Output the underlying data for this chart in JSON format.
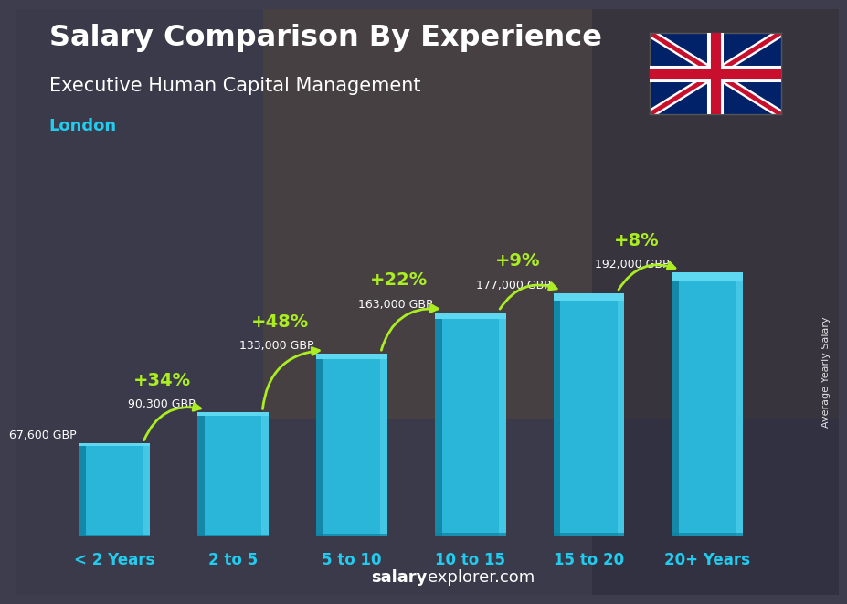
{
  "title_line1": "Salary Comparison By Experience",
  "title_line2": "Executive Human Capital Management",
  "city": "London",
  "categories": [
    "< 2 Years",
    "2 to 5",
    "5 to 10",
    "10 to 15",
    "15 to 20",
    "20+ Years"
  ],
  "values": [
    67600,
    90300,
    133000,
    163000,
    177000,
    192000
  ],
  "labels": [
    "67,600 GBP",
    "90,300 GBP",
    "133,000 GBP",
    "163,000 GBP",
    "177,000 GBP",
    "192,000 GBP"
  ],
  "pct_labels": [
    "+34%",
    "+48%",
    "+22%",
    "+9%",
    "+8%"
  ],
  "bar_color_main": "#29B6D8",
  "bar_color_light": "#5ED8F0",
  "bar_color_dark": "#1080A0",
  "bar_color_side": "#1595BB",
  "bg_color": "#3a3a4a",
  "text_color_white": "#ffffff",
  "text_color_green": "#aaee22",
  "text_color_cyan": "#22ccee",
  "footer_bold": "salary",
  "footer_rest": "explorer.com",
  "ylabel": "Average Yearly Salary",
  "ylim_max": 230000,
  "flag_blue": "#012169",
  "flag_red": "#C8102E"
}
